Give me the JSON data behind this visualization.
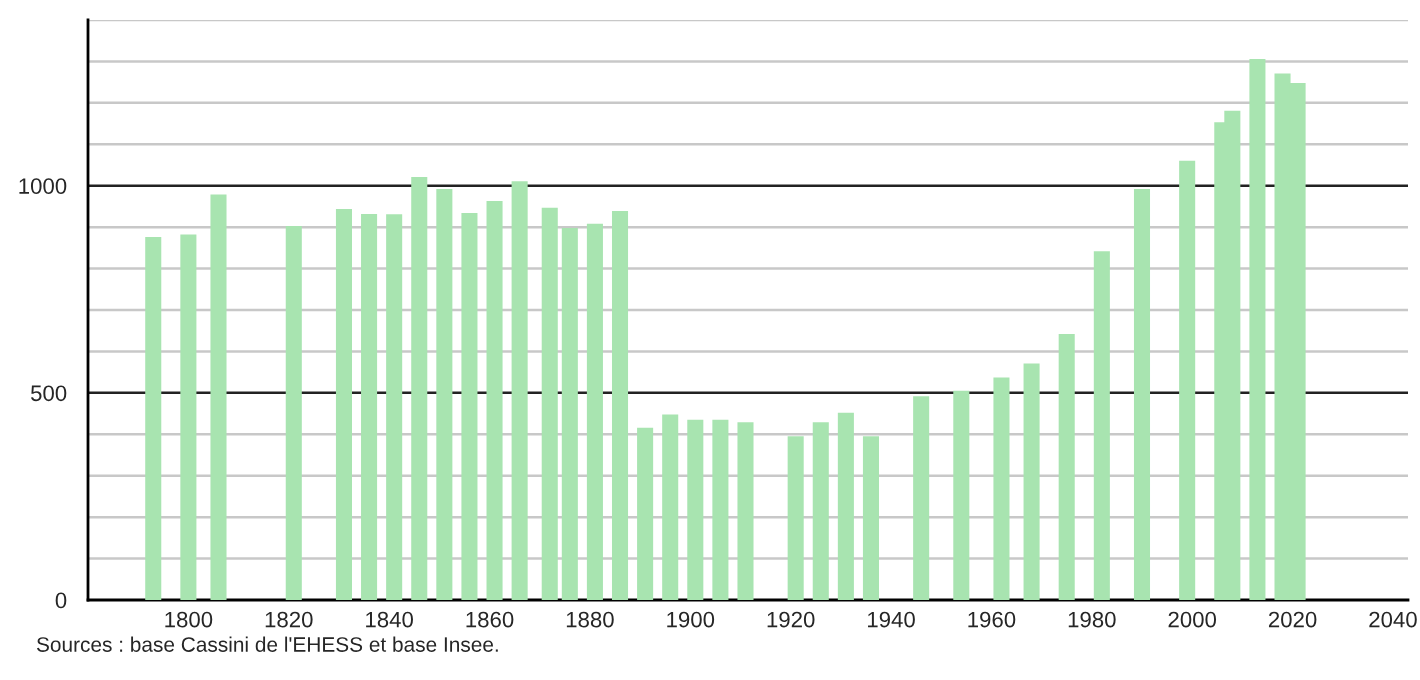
{
  "chart_data": {
    "type": "bar",
    "x": [
      1793,
      1800,
      1806,
      1821,
      1831,
      1836,
      1841,
      1846,
      1851,
      1856,
      1861,
      1866,
      1872,
      1876,
      1881,
      1886,
      1891,
      1896,
      1901,
      1906,
      1911,
      1921,
      1926,
      1931,
      1936,
      1946,
      1954,
      1962,
      1968,
      1975,
      1982,
      1990,
      1999,
      2006,
      2008,
      2013,
      2018,
      2021
    ],
    "values": [
      876,
      882,
      979,
      903,
      944,
      932,
      931,
      1021,
      992,
      934,
      963,
      1011,
      947,
      898,
      908,
      939,
      416,
      448,
      435,
      435,
      429,
      395,
      429,
      452,
      395,
      492,
      505,
      537,
      571,
      642,
      842,
      992,
      1060,
      1153,
      1181,
      1306,
      1271,
      1248
    ],
    "color": "#a8e4b0",
    "xlim": [
      1780,
      2043
    ],
    "xticks": [
      1800,
      1820,
      1840,
      1860,
      1880,
      1900,
      1920,
      1940,
      1960,
      1980,
      2000,
      2020,
      2040
    ],
    "ylim": [
      0,
      1400
    ],
    "yticks": [
      0,
      {
        "value": 100,
        "label": null
      },
      {
        "value": 200,
        "label": null
      },
      {
        "value": 300,
        "label": null
      },
      {
        "value": 400,
        "label": null
      },
      500,
      {
        "value": 600,
        "label": null
      },
      {
        "value": 700,
        "label": null
      },
      {
        "value": 800,
        "label": null
      },
      {
        "value": 900,
        "label": null
      },
      1000,
      {
        "value": 1100,
        "label": null
      },
      {
        "value": 1200,
        "label": null
      },
      {
        "value": 1300,
        "label": null
      },
      {
        "value": 1400,
        "label": null
      }
    ],
    "grid": "y",
    "annotations": [
      "Sources : base Cassini de l'EHESS et base Insee."
    ]
  }
}
